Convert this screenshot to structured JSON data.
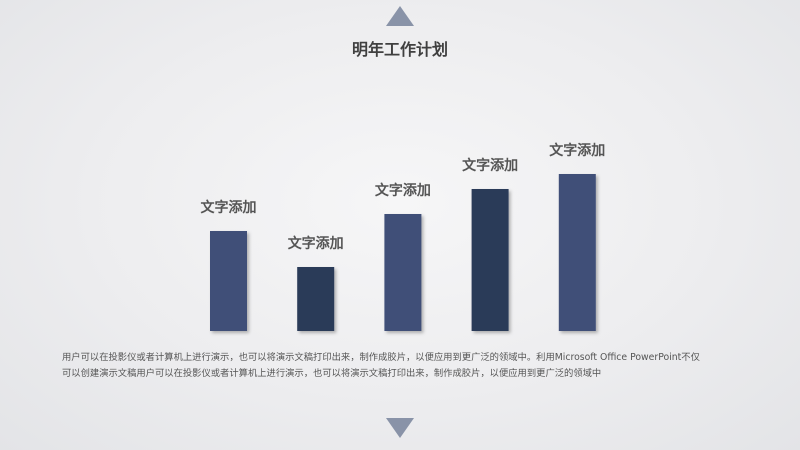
{
  "slide": {
    "title": "明年工作计划",
    "description_line1": "用户可以在投影仪或者计算机上进行演示，也可以将演示文稿打印出来，制作成胶片，以便应用到更广泛的领域中。利用Microsoft Office PowerPoint不仅",
    "description_line2": "可以创建演示文稿用户可以在投影仪或者计算机上进行演示，也可以将演示文稿打印出来，制作成胶片，以便应用到更广泛的领域中",
    "icons": [
      "triangle-up-icon",
      "triangle-down-icon"
    ],
    "colors": {
      "bar_light": "#3f5078",
      "bar_dark": "#2c3a58",
      "triangle": "#8993a8",
      "label": "#555555"
    }
  },
  "chart_data": {
    "type": "bar",
    "categories": [
      "",
      "",
      "",
      "",
      ""
    ],
    "values": [
      100,
      64,
      117,
      142,
      157
    ],
    "data_labels": [
      "文字添加",
      "文字添加",
      "文字添加",
      "文字添加",
      "文字添加"
    ],
    "bar_colors": [
      "#3f5078",
      "#2c3a58",
      "#3f5078",
      "#2c3a58",
      "#3f5078"
    ],
    "title": "",
    "xlabel": "",
    "ylabel": "",
    "ylim": [
      0,
      157
    ],
    "grid": false,
    "legend": "none"
  }
}
